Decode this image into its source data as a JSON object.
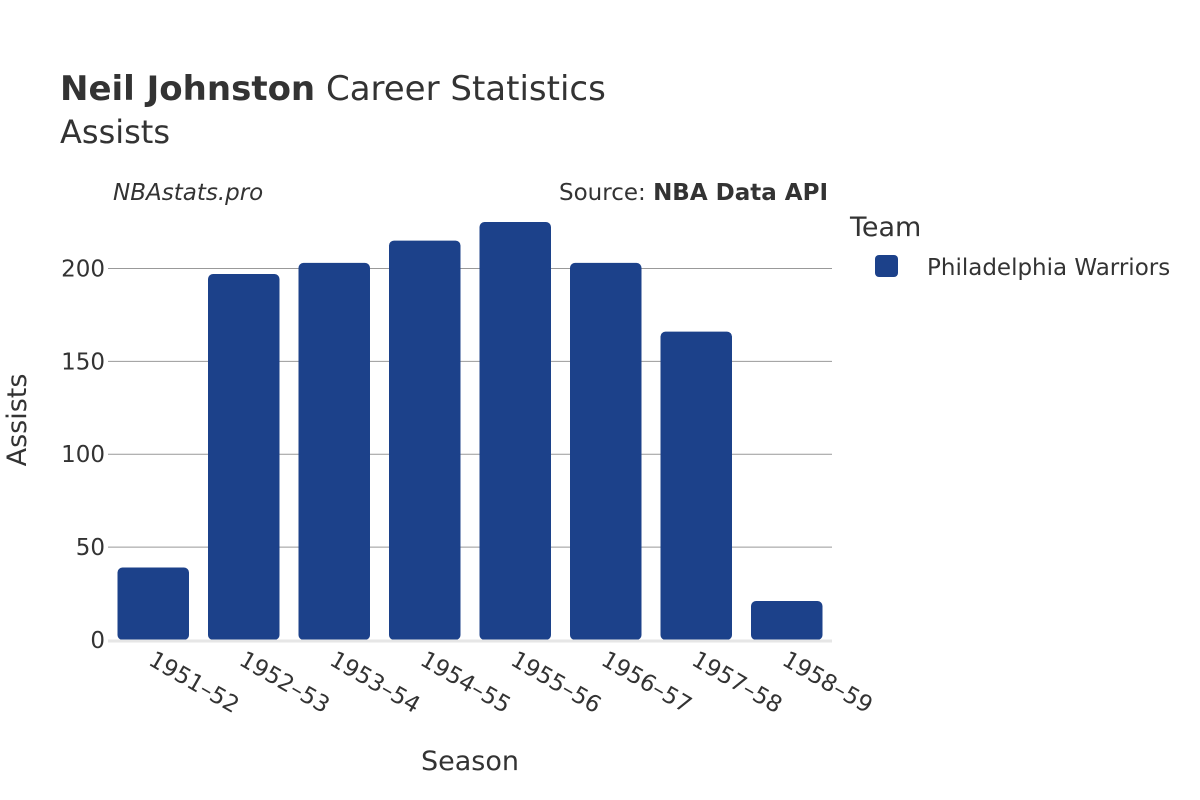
{
  "header": {
    "title_bold": "Neil Johnston",
    "title_rest": " Career Statistics",
    "subtitle": "Assists"
  },
  "watermark": "NBAstats.pro",
  "source": {
    "prefix": "Source: ",
    "name": "NBA Data API"
  },
  "legend": {
    "title": "Team",
    "items": [
      {
        "label": "Philadelphia Warriors",
        "color": "#1c418a"
      }
    ]
  },
  "chart_data": {
    "type": "bar",
    "categories": [
      "1951–52",
      "1952–53",
      "1953–54",
      "1954–55",
      "1955–56",
      "1956–57",
      "1957–58",
      "1958–59"
    ],
    "series": [
      {
        "name": "Philadelphia Warriors",
        "color": "#1c418a",
        "values": [
          39,
          197,
          203,
          215,
          225,
          203,
          166,
          21
        ]
      }
    ],
    "title": "Neil Johnston Career Statistics",
    "subtitle": "Assists",
    "xlabel": "Season",
    "ylabel": "Assists",
    "ylim": [
      0,
      225
    ],
    "yticks": [
      0,
      50,
      100,
      150,
      200
    ],
    "grid": true,
    "legend_position": "top-right"
  }
}
